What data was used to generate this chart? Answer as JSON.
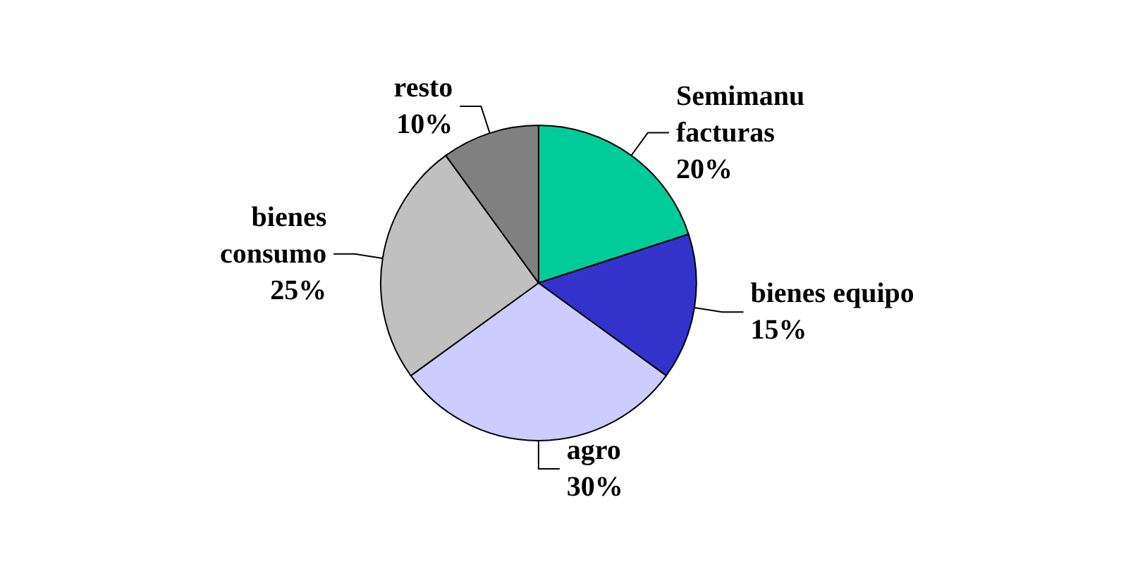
{
  "chart_data": {
    "type": "pie",
    "categories": [
      "Semimanu\nfacturas",
      "bienes equipo",
      "agro",
      "bienes\nconsumo",
      "resto"
    ],
    "values": [
      20,
      15,
      30,
      25,
      10
    ],
    "value_labels": [
      "20%",
      "15%",
      "30%",
      "25%",
      "10%"
    ],
    "colors": [
      "#00cc99",
      "#3333cc",
      "#ccccff",
      "#c0c0c0",
      "#808080"
    ],
    "legend": false
  }
}
